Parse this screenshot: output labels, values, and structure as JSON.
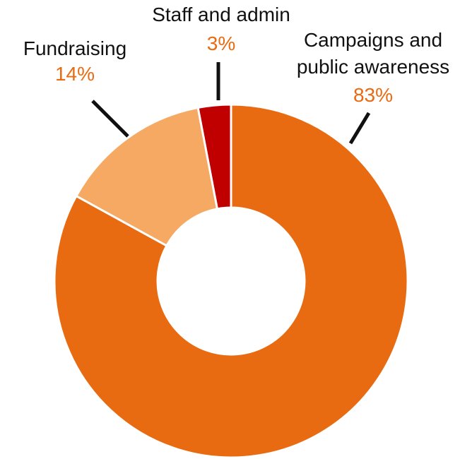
{
  "colors": {
    "campaigns": "#e86b12",
    "fundraising": "#f5a963",
    "staff": "#c00000",
    "value_text": "#e86b12",
    "leader": "#111111"
  },
  "chart_data": {
    "type": "pie",
    "donut": true,
    "start_angle_deg": 0,
    "direction": "clockwise",
    "slices": [
      {
        "key": "campaigns",
        "label_lines": [
          "Campaigns and",
          "public awareness"
        ],
        "value": 83,
        "value_label": "83%"
      },
      {
        "key": "fundraising",
        "label_lines": [
          "Fundraising"
        ],
        "value": 14,
        "value_label": "14%"
      },
      {
        "key": "staff",
        "label_lines": [
          "Staff and admin"
        ],
        "value": 3,
        "value_label": "3%"
      }
    ]
  }
}
